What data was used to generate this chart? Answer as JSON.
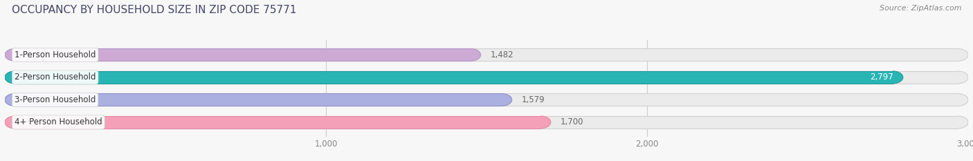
{
  "title": "OCCUPANCY BY HOUSEHOLD SIZE IN ZIP CODE 75771",
  "source": "Source: ZipAtlas.com",
  "categories": [
    "1-Person Household",
    "2-Person Household",
    "3-Person Household",
    "4+ Person Household"
  ],
  "values": [
    1482,
    2797,
    1579,
    1700
  ],
  "bar_colors": [
    "#ccaad4",
    "#2ab5b5",
    "#aab0e0",
    "#f4a0b8"
  ],
  "bar_edge_colors": [
    "#b898c8",
    "#1a9898",
    "#9090cc",
    "#e888a8"
  ],
  "bg_bar_color": "#ebebeb",
  "bg_bar_edge_color": "#d0d0d0",
  "label_colors": [
    "#888888",
    "#ffffff",
    "#888888",
    "#888888"
  ],
  "xlim": [
    0,
    3000
  ],
  "xticks": [
    1000,
    2000,
    3000
  ],
  "background_color": "#f7f7f7",
  "title_color": "#444466",
  "source_color": "#888888",
  "title_fontsize": 11,
  "source_fontsize": 8,
  "label_fontsize": 8.5,
  "category_fontsize": 8.5,
  "tick_fontsize": 8.5
}
